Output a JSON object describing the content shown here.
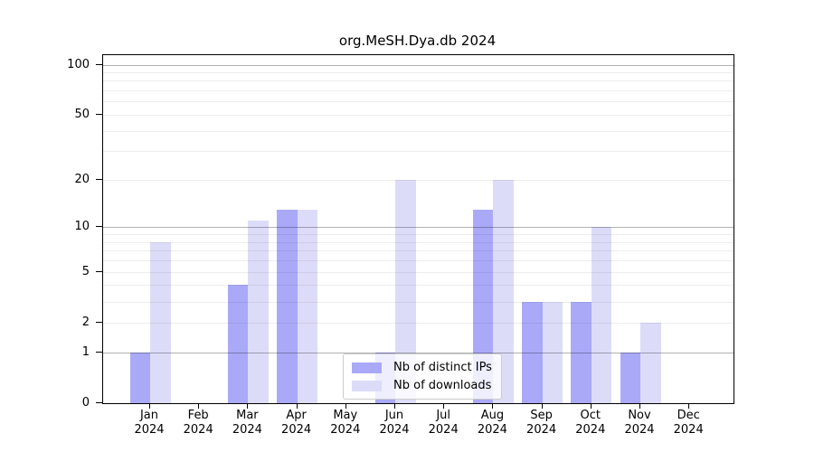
{
  "title": "org.MeSH.Dya.db 2024",
  "colors": {
    "distinct_ips_bar": "#a9a9f8",
    "downloads_bar": "#dcdcf9",
    "axis": "#000000",
    "gridline_major": "#b3b3b3",
    "gridline_minor": "#ededed",
    "legend_border": "#cccccc"
  },
  "legend": {
    "items": [
      {
        "label": "Nb of distinct IPs",
        "color": "#a9a9f8"
      },
      {
        "label": "Nb of downloads",
        "color": "#dcdcf9"
      }
    ]
  },
  "chart_data": {
    "type": "bar",
    "title": "org.MeSH.Dya.db 2024",
    "months": [
      "Jan",
      "Feb",
      "Mar",
      "Apr",
      "May",
      "Jun",
      "Jul",
      "Aug",
      "Sep",
      "Oct",
      "Nov",
      "Dec"
    ],
    "year": "2024",
    "series": [
      {
        "name": "Nb of distinct IPs",
        "color": "#a9a9f8",
        "values": [
          1,
          0,
          4,
          13,
          0,
          1,
          0,
          13,
          3,
          3,
          1,
          0
        ]
      },
      {
        "name": "Nb of downloads",
        "color": "#dcdcf9",
        "values": [
          8,
          0,
          11,
          13,
          0,
          20,
          0,
          20,
          3,
          10,
          2,
          0
        ]
      }
    ],
    "y_scale": "log1p",
    "ylim": [
      0,
      114
    ],
    "y_ticks_labeled": [
      0,
      1,
      2,
      5,
      10,
      20,
      50,
      100
    ],
    "y_gridlines_major": [
      1,
      10,
      100
    ],
    "y_gridlines_minor": [
      2,
      3,
      4,
      5,
      6,
      7,
      8,
      9,
      20,
      30,
      40,
      50,
      60,
      70,
      80,
      90
    ],
    "grid_over_bars": true,
    "legend_position": "lower center"
  }
}
